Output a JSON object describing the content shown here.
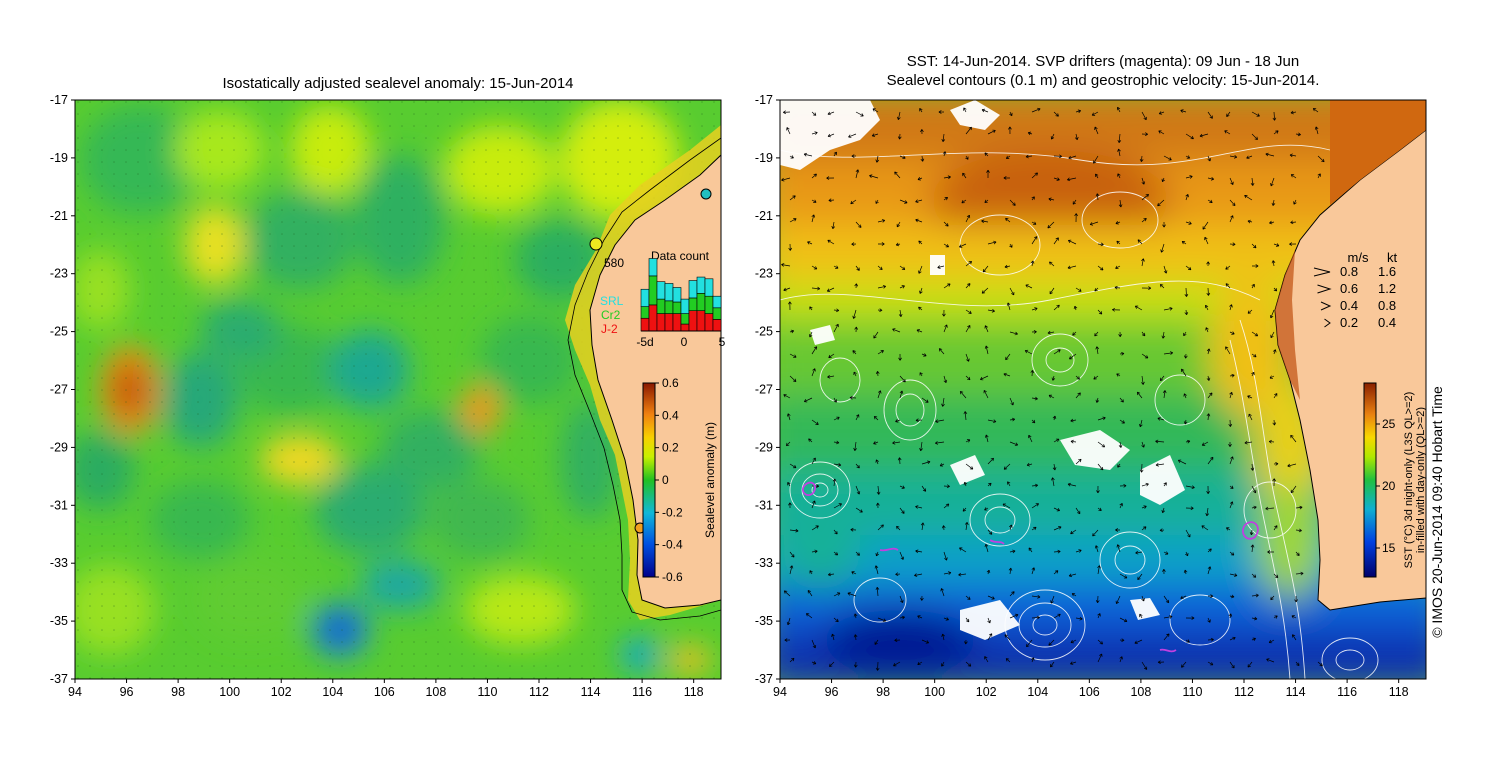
{
  "left_panel": {
    "title": "Isostatically adjusted sealevel anomaly: 15-Jun-2014",
    "x_ticks": [
      "94",
      "96",
      "98",
      "100",
      "102",
      "104",
      "106",
      "108",
      "110",
      "112",
      "114",
      "116",
      "118"
    ],
    "y_ticks": [
      "-17",
      "-19",
      "-21",
      "-23",
      "-25",
      "-27",
      "-29",
      "-31",
      "-33",
      "-35",
      "-37"
    ],
    "tide_gauge_label": "580",
    "inset": {
      "title": "Data count",
      "legend": [
        {
          "name": "SRL",
          "color": "#22e0e0"
        },
        {
          "name": "Cr2",
          "color": "#22cc22"
        },
        {
          "name": "J-2",
          "color": "#ee1111"
        }
      ],
      "x_ticks": [
        "-5d",
        "0",
        "5"
      ],
      "stacks": [
        [
          0.3,
          0.2,
          0.22
        ],
        [
          0.3,
          0.5,
          0.45
        ],
        [
          0.3,
          0.25,
          0.3
        ],
        [
          0.3,
          0.22,
          0.3
        ],
        [
          0.25,
          0.2,
          0.3
        ],
        [
          0.25,
          0.18,
          0.12
        ],
        [
          0.3,
          0.22,
          0.35
        ],
        [
          0.28,
          0.3,
          0.35
        ],
        [
          0.3,
          0.3,
          0.3
        ],
        [
          0.2,
          0.2,
          0.2
        ]
      ]
    },
    "colorbar": {
      "label": "Sealevel anomaly (m)",
      "ticks": [
        "0.6",
        "0.4",
        "0.2",
        "0",
        "-0.2",
        "-0.4",
        "-0.6"
      ]
    }
  },
  "right_panel": {
    "title_line1": "SST: 14-Jun-2014. SVP drifters (magenta): 09 Jun - 18 Jun",
    "title_line2": "Sealevel contours (0.1 m) and geostrophic velocity: 15-Jun-2014.",
    "x_ticks": [
      "94",
      "96",
      "98",
      "100",
      "102",
      "104",
      "106",
      "108",
      "110",
      "112",
      "114",
      "116",
      "118"
    ],
    "y_ticks": [
      "-17",
      "-19",
      "-21",
      "-23",
      "-25",
      "-27",
      "-29",
      "-31",
      "-33",
      "-35",
      "-37"
    ],
    "velocity_legend": {
      "header_ms": "m/s",
      "header_kt": "kt",
      "rows": [
        {
          "ms": "0.8",
          "kt": "1.6"
        },
        {
          "ms": "0.6",
          "kt": "1.2"
        },
        {
          "ms": "0.4",
          "kt": "0.8"
        },
        {
          "ms": "0.2",
          "kt": "0.4"
        }
      ]
    },
    "colorbar": {
      "ticks": [
        "25",
        "20",
        "15"
      ],
      "label_line1": "SST (°C) 3d night-only (L3S QL>=2)",
      "label_line2": "in-filled with day-only (QL>=2)"
    }
  },
  "credit": "© IMOS 20-Jun-2014 09:40 Hobart Time"
}
